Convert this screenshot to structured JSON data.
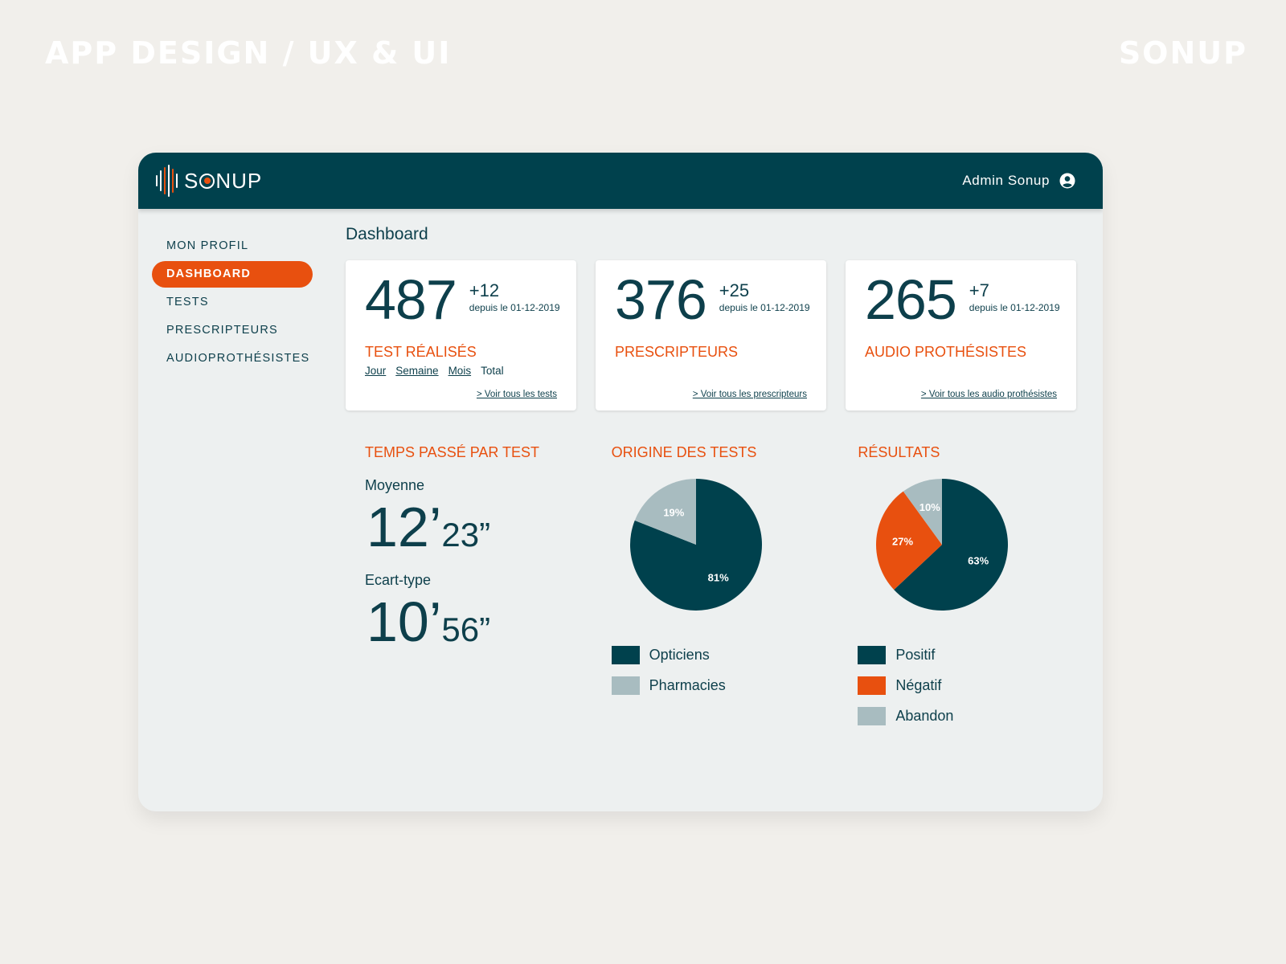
{
  "captions": {
    "left": "APP DESIGN / UX & UI",
    "right": "SONUP"
  },
  "colors": {
    "primary": "#00414d",
    "accent": "#e8500f",
    "muted": "#a8bcc0",
    "panel": "#edf0f0"
  },
  "header": {
    "brand": "SONUP",
    "user": "Admin Sonup",
    "user_icon": "account-circle-icon"
  },
  "sidebar": {
    "items": [
      {
        "label": "MON PROFIL",
        "active": false
      },
      {
        "label": "DASHBOARD",
        "active": true
      },
      {
        "label": "TESTS",
        "active": false
      },
      {
        "label": "PRESCRIPTEURS",
        "active": false
      },
      {
        "label": "AUDIOPROTHÉSISTES",
        "active": false
      }
    ]
  },
  "main": {
    "title": "Dashboard",
    "cards": [
      {
        "value": "487",
        "delta": "+12",
        "since": "depuis le 01-12-2019",
        "label": "TEST RÉALISÉS",
        "link": "> Voir tous les tests"
      },
      {
        "value": "376",
        "delta": "+25",
        "since": "depuis le 01-12-2019",
        "label": "PRESCRIPTEURS",
        "link": "> Voir tous les prescripteurs"
      },
      {
        "value": "265",
        "delta": "+7",
        "since": "depuis le 01-12-2019",
        "label": "AUDIO PROTHÉSISTES",
        "link": "> Voir tous les audio prothésistes"
      }
    ],
    "periods": {
      "jour": "Jour",
      "semaine": "Semaine",
      "mois": "Mois",
      "total": "Total"
    },
    "time": {
      "title": "TEMPS PASSÉ PAR TEST",
      "mean_label": "Moyenne",
      "mean_min": "12’",
      "mean_sec": "23”",
      "std_label": "Ecart-type",
      "std_min": "10’",
      "std_sec": "56”"
    },
    "origin_title": "ORIGINE DES TESTS",
    "results_title": "RÉSULTATS"
  },
  "chart_data": [
    {
      "type": "pie",
      "title": "ORIGINE DES TESTS",
      "categories": [
        "Opticiens",
        "Pharmacies"
      ],
      "values": [
        81,
        19
      ],
      "labels": [
        "81%",
        "19%"
      ],
      "colors": [
        "#00414d",
        "#a8bcc0"
      ],
      "legend": "bottom"
    },
    {
      "type": "pie",
      "title": "RÉSULTATS",
      "categories": [
        "Positif",
        "Négatif",
        "Abandon"
      ],
      "values": [
        63,
        27,
        10
      ],
      "labels": [
        "63%",
        "27%",
        "10%"
      ],
      "colors": [
        "#00414d",
        "#e8500f",
        "#a8bcc0"
      ],
      "legend": "bottom"
    }
  ]
}
